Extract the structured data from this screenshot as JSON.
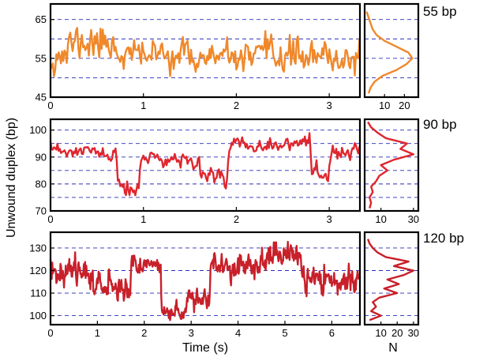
{
  "figure": {
    "ylabel": "Unwound duplex (bp)",
    "xlabel": "Time (s)",
    "hist_xlabel": "N"
  },
  "chart_data": [
    {
      "type": "line",
      "panel": "55 bp",
      "label": "55 bp",
      "color": "#f0882a",
      "xlabel": "",
      "ylabel": "Unwound duplex (bp)",
      "xlim": [
        0,
        3.33
      ],
      "ylim": [
        45,
        69
      ],
      "xticks": [
        0,
        1,
        2,
        3
      ],
      "yticks": [
        45,
        55,
        65
      ],
      "gridlines_y": [
        50,
        55,
        60,
        65
      ],
      "grid": "horizontal dashed",
      "seed": 11,
      "segments": [
        {
          "t0": 0.0,
          "t1": 0.2,
          "level": 56,
          "noise": 4.5
        },
        {
          "t0": 0.2,
          "t1": 0.7,
          "level": 59,
          "noise": 4.5
        },
        {
          "t0": 0.7,
          "t1": 1.5,
          "level": 56,
          "noise": 3.5
        },
        {
          "t0": 1.5,
          "t1": 2.3,
          "level": 55,
          "noise": 3.5
        },
        {
          "t0": 2.3,
          "t1": 2.75,
          "level": 56,
          "noise": 4.5
        },
        {
          "t0": 2.75,
          "t1": 3.33,
          "level": 55,
          "noise": 3.5
        }
      ],
      "histogram": {
        "xlabel": "N",
        "xlim": [
          0,
          27
        ],
        "xticks": [
          10,
          20
        ],
        "bins": [
          {
            "y": 46,
            "n": 2
          },
          {
            "y": 47.5,
            "n": 3
          },
          {
            "y": 49,
            "n": 5
          },
          {
            "y": 50.5,
            "n": 9
          },
          {
            "y": 52,
            "n": 16
          },
          {
            "y": 53.5,
            "n": 21
          },
          {
            "y": 55,
            "n": 24
          },
          {
            "y": 56.5,
            "n": 22
          },
          {
            "y": 58,
            "n": 16
          },
          {
            "y": 59.5,
            "n": 10
          },
          {
            "y": 61,
            "n": 6
          },
          {
            "y": 62.5,
            "n": 4
          },
          {
            "y": 64,
            "n": 3
          },
          {
            "y": 65.5,
            "n": 2
          },
          {
            "y": 67,
            "n": 1
          }
        ]
      }
    },
    {
      "type": "line",
      "panel": "90 bp",
      "label": "90 bp",
      "color": "#e0262e",
      "xlabel": "",
      "ylabel": "Unwound duplex (bp)",
      "xlim": [
        0,
        3.33
      ],
      "ylim": [
        70,
        104
      ],
      "xticks": [
        0,
        1,
        2,
        3
      ],
      "yticks": [
        70,
        80,
        90,
        100
      ],
      "gridlines_y": [
        75,
        80,
        85,
        90,
        95,
        100
      ],
      "grid": "horizontal dashed",
      "seed": 23,
      "segments": [
        {
          "t0": 0.0,
          "t1": 0.55,
          "level": 92,
          "noise": 2.5
        },
        {
          "t0": 0.55,
          "t1": 0.72,
          "level": 90,
          "noise": 3.0
        },
        {
          "t0": 0.72,
          "t1": 0.95,
          "level": 78,
          "noise": 3.5
        },
        {
          "t0": 0.95,
          "t1": 1.6,
          "level": 89,
          "noise": 3.0
        },
        {
          "t0": 1.6,
          "t1": 1.9,
          "level": 83,
          "noise": 3.0
        },
        {
          "t0": 1.9,
          "t1": 2.8,
          "level": 95,
          "noise": 3.0
        },
        {
          "t0": 2.8,
          "t1": 3.0,
          "level": 82,
          "noise": 3.5
        },
        {
          "t0": 3.0,
          "t1": 3.33,
          "level": 92,
          "noise": 2.5
        }
      ],
      "histogram": {
        "xlabel": "N",
        "xlim": [
          0,
          33
        ],
        "xticks": [
          10,
          30
        ],
        "bins": [
          {
            "y": 71,
            "n": 3
          },
          {
            "y": 73,
            "n": 4
          },
          {
            "y": 75,
            "n": 3
          },
          {
            "y": 77,
            "n": 5
          },
          {
            "y": 79,
            "n": 4
          },
          {
            "y": 81,
            "n": 7
          },
          {
            "y": 83,
            "n": 9
          },
          {
            "y": 85,
            "n": 14
          },
          {
            "y": 87,
            "n": 10
          },
          {
            "y": 89,
            "n": 18
          },
          {
            "y": 91,
            "n": 30
          },
          {
            "y": 93,
            "n": 22
          },
          {
            "y": 95,
            "n": 26
          },
          {
            "y": 97,
            "n": 13
          },
          {
            "y": 99,
            "n": 8
          },
          {
            "y": 101,
            "n": 4
          },
          {
            "y": 103,
            "n": 2
          }
        ]
      }
    },
    {
      "type": "line",
      "panel": "120 bp",
      "label": "120 bp",
      "color": "#c8202a",
      "xlabel": "Time (s)",
      "ylabel": "Unwound duplex (bp)",
      "xlim": [
        0,
        6.6
      ],
      "ylim": [
        96,
        137
      ],
      "xticks": [
        0,
        1,
        2,
        3,
        4,
        5,
        6
      ],
      "yticks": [
        100,
        110,
        120,
        130
      ],
      "gridlines_y": [
        100,
        110,
        120,
        130
      ],
      "grid": "horizontal dashed",
      "seed": 37,
      "segments": [
        {
          "t0": 0.0,
          "t1": 0.9,
          "level": 120,
          "noise": 5.5
        },
        {
          "t0": 0.9,
          "t1": 1.7,
          "level": 113,
          "noise": 5.5
        },
        {
          "t0": 1.7,
          "t1": 2.35,
          "level": 123,
          "noise": 4.0
        },
        {
          "t0": 2.35,
          "t1": 2.9,
          "level": 101,
          "noise": 3.5
        },
        {
          "t0": 2.9,
          "t1": 3.4,
          "level": 108,
          "noise": 4.5
        },
        {
          "t0": 3.4,
          "t1": 4.6,
          "level": 122,
          "noise": 5.0
        },
        {
          "t0": 4.6,
          "t1": 5.35,
          "level": 127,
          "noise": 5.5
        },
        {
          "t0": 5.35,
          "t1": 6.6,
          "level": 116,
          "noise": 5.5
        }
      ],
      "histogram": {
        "xlabel": "N",
        "xlim": [
          0,
          33
        ],
        "xticks": [
          10,
          20,
          30
        ],
        "bins": [
          {
            "y": 98,
            "n": 3
          },
          {
            "y": 100,
            "n": 10
          },
          {
            "y": 102,
            "n": 4
          },
          {
            "y": 104,
            "n": 7
          },
          {
            "y": 106,
            "n": 5
          },
          {
            "y": 108,
            "n": 9
          },
          {
            "y": 110,
            "n": 20
          },
          {
            "y": 112,
            "n": 12
          },
          {
            "y": 114,
            "n": 21
          },
          {
            "y": 116,
            "n": 14
          },
          {
            "y": 118,
            "n": 24
          },
          {
            "y": 120,
            "n": 30
          },
          {
            "y": 122,
            "n": 18
          },
          {
            "y": 124,
            "n": 27
          },
          {
            "y": 126,
            "n": 13
          },
          {
            "y": 128,
            "n": 8
          },
          {
            "y": 130,
            "n": 5
          },
          {
            "y": 132,
            "n": 3
          },
          {
            "y": 134,
            "n": 2
          }
        ]
      }
    }
  ]
}
